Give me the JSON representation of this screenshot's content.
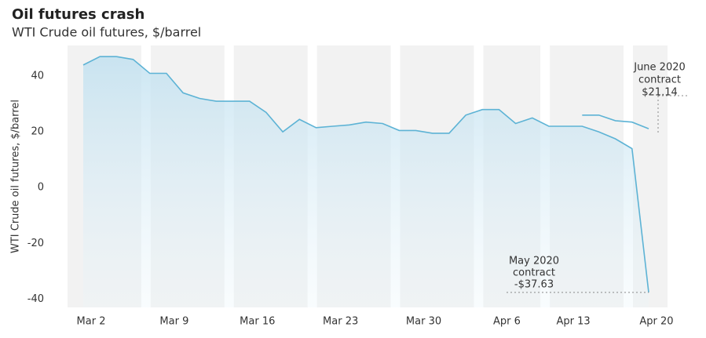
{
  "chart_data": {
    "type": "line",
    "title": "Oil futures crash",
    "subtitle": "WTI Crude oil futures, $/barrel",
    "y_label": "WTI Crude oil futures, $/barrel",
    "categories": [
      "Mar 2",
      null,
      null,
      null,
      null,
      "Mar 9",
      null,
      null,
      null,
      null,
      "Mar 16",
      null,
      null,
      null,
      null,
      "Mar 23",
      null,
      null,
      null,
      null,
      "Mar 30",
      null,
      null,
      null,
      null,
      "Apr 6",
      null,
      null,
      null,
      "Apr 13",
      null,
      null,
      null,
      null,
      "Apr 20"
    ],
    "series": [
      {
        "name": "May 2020 contract",
        "color": "#5db3d5",
        "values": [
          44,
          47,
          47,
          46,
          41,
          41,
          34,
          32,
          31,
          31,
          31,
          27,
          20,
          24.5,
          21.5,
          22,
          22.5,
          23.5,
          23,
          20.5,
          20.5,
          19.5,
          19.5,
          26,
          28,
          28,
          23,
          25,
          22,
          22,
          22,
          20,
          17.5,
          14,
          -37.63
        ]
      },
      {
        "name": "June 2020 contract",
        "color": "#5db3d5",
        "values": [
          null,
          null,
          null,
          null,
          null,
          null,
          null,
          null,
          null,
          null,
          null,
          null,
          null,
          null,
          null,
          null,
          null,
          null,
          null,
          null,
          null,
          null,
          null,
          null,
          null,
          null,
          null,
          null,
          null,
          null,
          26,
          26,
          24,
          23.5,
          21.14
        ]
      }
    ],
    "ylim": [
      -43,
      51
    ],
    "yticks": [
      -40,
      -20,
      0,
      20,
      40
    ],
    "annotations": [
      {
        "lines": [
          "June 2020",
          "contract",
          "$21.14"
        ]
      },
      {
        "lines": [
          "May 2020",
          "contract",
          "-$37.63"
        ]
      }
    ]
  }
}
